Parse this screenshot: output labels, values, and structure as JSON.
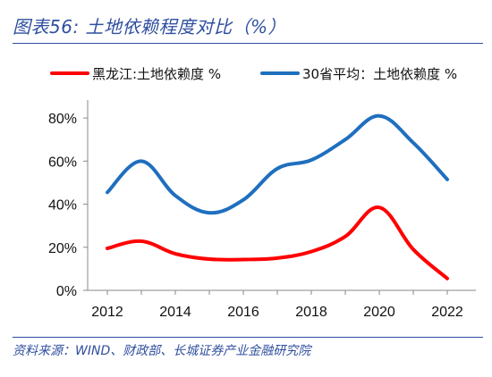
{
  "header": {
    "title": "图表56:  土地依赖程度对比（%）"
  },
  "footer": {
    "source": "资料来源：WIND、财政部、长城证券产业金融研究院"
  },
  "chart_data": {
    "type": "line",
    "x": [
      2012,
      2013,
      2014,
      2015,
      2016,
      2017,
      2018,
      2019,
      2020,
      2021,
      2022
    ],
    "series": [
      {
        "name": "黑龙江:土地依赖度 %",
        "color": "#ff0000",
        "values": [
          19.5,
          22.8,
          17,
          14.5,
          14.3,
          15,
          18,
          25,
          38.5,
          19,
          5.5
        ]
      },
      {
        "name": "30省平均：土地依赖度 %",
        "color": "#1f6fbf",
        "values": [
          45.5,
          60,
          44,
          36,
          42,
          56.5,
          60.5,
          70,
          81,
          68.5,
          51.5
        ]
      }
    ],
    "x_ticks": [
      "2012",
      "2014",
      "2016",
      "2018",
      "2020",
      "2022"
    ],
    "y_ticks": [
      "0%",
      "20%",
      "40%",
      "60%",
      "80%"
    ],
    "ylim": [
      0,
      90
    ],
    "legend_position": "top",
    "grid": false
  }
}
